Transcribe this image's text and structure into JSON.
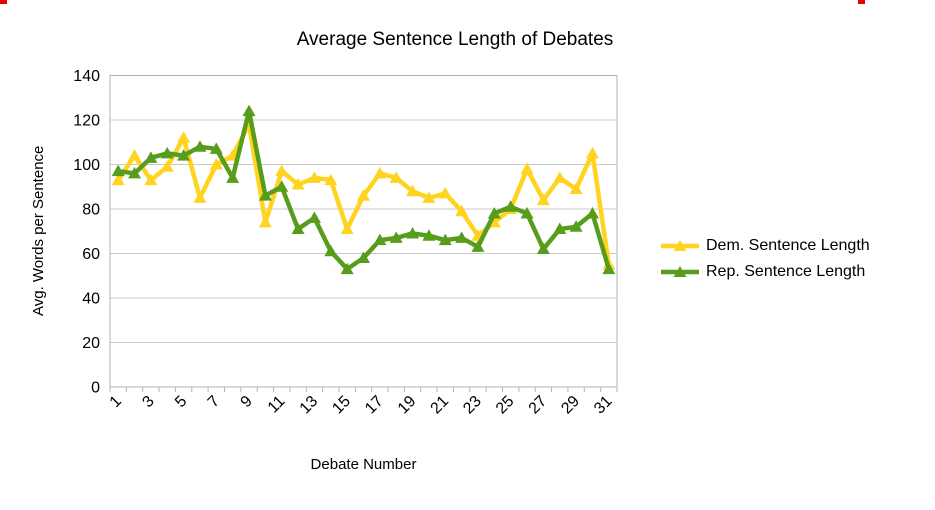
{
  "title": "Average Sentence Length of Debates",
  "axes": {
    "y_title": "Avg. Words per Sentence",
    "x_title": "Debate Number"
  },
  "legend": {
    "items": [
      {
        "label": "Dem. Sentence Length",
        "color": "#FFD320"
      },
      {
        "label": "Rep. Sentence Length",
        "color": "#579D1C"
      }
    ]
  },
  "chart_data": {
    "type": "line",
    "title": "Average Sentence Length of Debates",
    "xlabel": "Debate Number",
    "ylabel": "Avg. Words per Sentence",
    "x": [
      1,
      2,
      3,
      4,
      5,
      6,
      7,
      8,
      9,
      10,
      11,
      12,
      13,
      14,
      15,
      16,
      17,
      18,
      19,
      20,
      21,
      22,
      23,
      24,
      25,
      26,
      27,
      28,
      29,
      30,
      31
    ],
    "x_tick_labels": [
      "1",
      "3",
      "5",
      "7",
      "9",
      "11",
      "13",
      "15",
      "17",
      "19",
      "21",
      "23",
      "25",
      "27",
      "29",
      "31"
    ],
    "y_ticks": [
      0,
      20,
      40,
      60,
      80,
      100,
      120,
      140
    ],
    "ylim": [
      0,
      140
    ],
    "grid": true,
    "legend_position": "right",
    "marker": "triangle-up",
    "series": [
      {
        "name": "Dem. Sentence Length",
        "color": "#FFD320",
        "values": [
          93,
          104,
          93,
          99,
          112,
          85,
          100,
          104,
          118,
          74,
          97,
          91,
          94,
          93,
          71,
          86,
          96,
          94,
          88,
          85,
          87,
          79,
          68,
          74,
          80,
          98,
          84,
          94,
          89,
          105,
          55
        ]
      },
      {
        "name": "Rep. Sentence Length",
        "color": "#579D1C",
        "values": [
          97,
          96,
          103,
          105,
          104,
          108,
          107,
          94,
          124,
          86,
          90,
          71,
          76,
          61,
          53,
          58,
          66,
          67,
          69,
          68,
          66,
          67,
          63,
          78,
          81,
          78,
          62,
          71,
          72,
          78,
          53
        ]
      }
    ]
  }
}
